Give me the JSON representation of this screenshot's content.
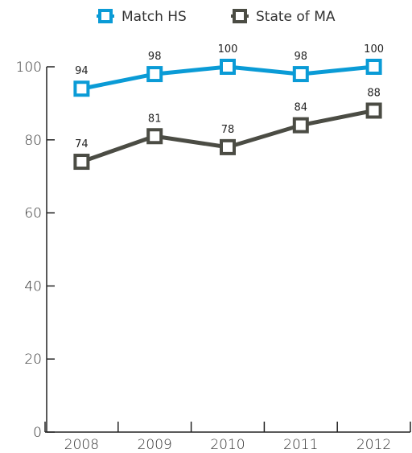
{
  "chart_data": {
    "type": "line",
    "categories": [
      "2008",
      "2009",
      "2010",
      "2011",
      "2012"
    ],
    "series": [
      {
        "name": "Match HS",
        "color": "#0a9bd6",
        "values": [
          94,
          98,
          100,
          98,
          100
        ],
        "labels": [
          "94",
          "98",
          "100",
          "98",
          "100"
        ]
      },
      {
        "name": "State of MA",
        "color": "#4b4c44",
        "values": [
          74,
          81,
          78,
          84,
          88
        ],
        "labels": [
          "74",
          "81",
          "78",
          "84",
          "88"
        ]
      }
    ],
    "y_ticks": [
      "0",
      "20",
      "40",
      "60",
      "80",
      "100"
    ],
    "ylim": [
      0,
      100
    ],
    "legend_position": "top",
    "grid": false
  }
}
